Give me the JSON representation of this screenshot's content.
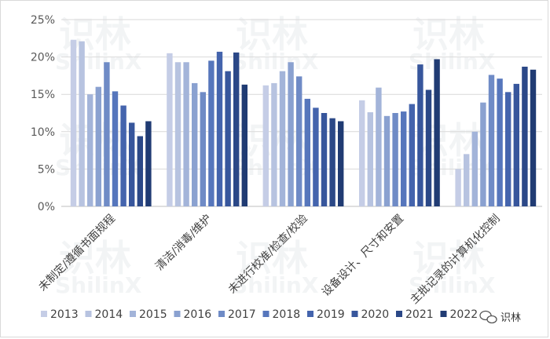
{
  "chart_data": {
    "type": "bar",
    "title": "",
    "xlabel": "",
    "ylabel": "",
    "ylim": [
      0,
      25
    ],
    "yticks": [
      "0%",
      "5%",
      "10%",
      "15%",
      "20%",
      "25%"
    ],
    "yunit": "%",
    "grid": true,
    "legend_position": "bottom",
    "categories": [
      "未制定/遵循书面规程",
      "清洁/消毒/维护",
      "未进行校准/检查/校验",
      "设备设计、尺寸和安置",
      "主批记录的计算机化控制"
    ],
    "series": [
      {
        "name": "2013",
        "color": "#c5cde6",
        "values": [
          22.3,
          20.5,
          16.2,
          14.2,
          5.0
        ]
      },
      {
        "name": "2014",
        "color": "#b7c3e0",
        "values": [
          22.1,
          19.3,
          16.5,
          12.6,
          7.0
        ]
      },
      {
        "name": "2015",
        "color": "#a3b4d9",
        "values": [
          15.0,
          19.3,
          18.1,
          15.9,
          10.0
        ]
      },
      {
        "name": "2016",
        "color": "#8aa1d0",
        "values": [
          16.0,
          16.5,
          19.3,
          12.1,
          13.9
        ]
      },
      {
        "name": "2017",
        "color": "#6f8bc6",
        "values": [
          19.3,
          15.3,
          17.4,
          12.5,
          17.6
        ]
      },
      {
        "name": "2018",
        "color": "#5676bc",
        "values": [
          15.4,
          19.5,
          14.4,
          12.7,
          17.1
        ]
      },
      {
        "name": "2019",
        "color": "#4464ad",
        "values": [
          13.5,
          20.7,
          13.2,
          13.7,
          15.3
        ]
      },
      {
        "name": "2020",
        "color": "#37569c",
        "values": [
          11.2,
          18.1,
          12.5,
          19.0,
          16.4
        ]
      },
      {
        "name": "2021",
        "color": "#2b4887",
        "values": [
          9.4,
          20.6,
          11.8,
          15.6,
          18.7
        ]
      },
      {
        "name": "2022",
        "color": "#203b73",
        "values": [
          11.4,
          16.3,
          11.4,
          19.7,
          18.3
        ]
      }
    ]
  },
  "legend": {
    "items": [
      "2013",
      "2014",
      "2015",
      "2016",
      "2017",
      "2018",
      "2019",
      "2020",
      "2021",
      "2022"
    ]
  },
  "watermark": {
    "brand_cn": "识林",
    "brand_en": "ShilinX",
    "corner_text": "识林",
    "corner_icon": "wechat-icon"
  }
}
